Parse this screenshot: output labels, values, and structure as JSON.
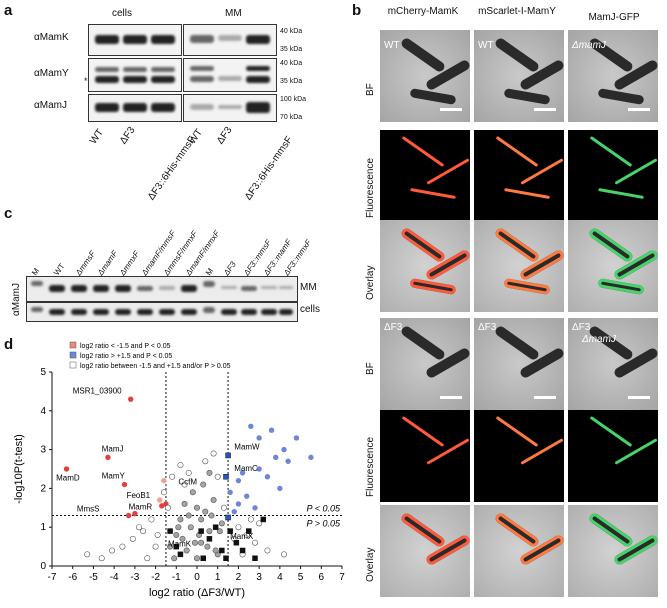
{
  "panels": {
    "a": {
      "letter": "a",
      "group_labels": [
        "cells",
        "MM"
      ],
      "rows": [
        "αMamK",
        "αMamY",
        "αMamJ"
      ],
      "markers_right": [
        "40 kDa",
        "35 kDa",
        "40 kDa",
        "35 kDa",
        "100 kDa",
        "70 kDa"
      ],
      "asterisk": "*",
      "lanes": [
        "WT",
        "ΔF3",
        "ΔF3::6His-mmsF",
        "WT",
        "ΔF3",
        "ΔF3::6His-mmsF"
      ]
    },
    "b": {
      "letter": "b",
      "columns": [
        "mCherry-MamK",
        "mScarlet-I-MamY",
        "MamJ-GFP"
      ],
      "row_labels_top": [
        "BF",
        "Fluorescence",
        "Overlay"
      ],
      "row_labels_bottom": [
        "BF",
        "Fluorescence",
        "Overlay"
      ],
      "strain_top": [
        "WT",
        "WT",
        "ΔmamJ"
      ],
      "strain_bottom": [
        "ΔF3",
        "ΔF3",
        "ΔF3",
        "ΔmamJ"
      ]
    },
    "c": {
      "letter": "c",
      "lanes": [
        "M",
        "WT",
        "ΔmmsF",
        "ΔmamF",
        "ΔmmxF",
        "ΔmamF/mmsF",
        "ΔmmsF/mmxF",
        "ΔmamF/mmxF",
        "M",
        "ΔF3",
        "ΔF3::mmsF",
        "ΔF3::mamF",
        "ΔF3::mmxF"
      ],
      "row_labels": [
        "MM",
        "cells"
      ],
      "antibody": "αMamJ"
    },
    "d": {
      "letter": "d",
      "legend": [
        {
          "text": "log2 ratio < -1.5 and P < 0.05",
          "color": "#f08a7a"
        },
        {
          "text": "log2 ratio > +1.5 and P < 0.05",
          "color": "#6f86d6"
        },
        {
          "text": "log2 ratio between -1.5 and +1.5 and/or P > 0.05",
          "color": "#ffffff"
        }
      ],
      "thresholds": [
        "P < 0.05",
        "P > 0.05"
      ],
      "annotations": [
        "MSR1_03900",
        "MamJ",
        "MamD",
        "MamY",
        "FeoB1",
        "MamR",
        "MmsS",
        "CcfM",
        "MamW",
        "MamC",
        "MamX",
        "MamK"
      ]
    }
  },
  "chart_data": {
    "type": "scatter",
    "title": "",
    "xlabel": "log2 ratio (ΔF3/WT)",
    "ylabel": "-log10P(t-test)",
    "xlim": [
      -7,
      7
    ],
    "ylim": [
      0,
      5
    ],
    "x_ticks": [
      "-7",
      "-6",
      "-5",
      "-4",
      "-3",
      "-2",
      "-1",
      "0",
      "1",
      "2",
      "3",
      "4",
      "5",
      "6",
      "7"
    ],
    "y_ticks": [
      "0",
      "1",
      "2",
      "3",
      "4",
      "5"
    ],
    "threshold_lines": {
      "x": [
        -1.5,
        1.5
      ],
      "y": 1.3
    },
    "series": [
      {
        "name": "down",
        "color": "#e04040",
        "points": [
          [
            -3.2,
            4.3
          ],
          [
            -4.3,
            2.8
          ],
          [
            -6.3,
            2.5
          ],
          [
            -3.5,
            2.1
          ],
          [
            -1.7,
            1.55
          ],
          [
            -3.0,
            1.35
          ],
          [
            -3.3,
            1.3
          ],
          [
            -1.5,
            1.6
          ]
        ]
      },
      {
        "name": "down-faint",
        "color": "#f3a090",
        "points": [
          [
            -1.8,
            1.7
          ],
          [
            -1.6,
            2.2
          ]
        ]
      },
      {
        "name": "up",
        "color": "#6f86d6",
        "points": [
          [
            2.6,
            3.6
          ],
          [
            3.0,
            3.3
          ],
          [
            3.6,
            3.5
          ],
          [
            4.2,
            3.0
          ],
          [
            4.8,
            3.3
          ],
          [
            5.5,
            2.8
          ],
          [
            2.2,
            2.4
          ],
          [
            3.0,
            2.5
          ],
          [
            3.4,
            2.3
          ],
          [
            4.0,
            2.0
          ],
          [
            2.4,
            1.8
          ],
          [
            2.0,
            1.6
          ],
          [
            2.8,
            1.5
          ],
          [
            1.8,
            1.4
          ],
          [
            3.8,
            2.8
          ],
          [
            2.0,
            2.2
          ],
          [
            1.6,
            1.9
          ],
          [
            4.4,
            2.7
          ]
        ]
      },
      {
        "name": "up-strong",
        "color": "#2a55c8",
        "points": [
          [
            1.5,
            2.85
          ],
          [
            1.4,
            2.3
          ],
          [
            1.5,
            1.25
          ]
        ]
      },
      {
        "name": "ns-grey",
        "color": "#9a9a9a",
        "points": [
          [
            -1.3,
            0.5
          ],
          [
            -1.0,
            0.8
          ],
          [
            -0.8,
            1.2
          ],
          [
            -0.5,
            0.4
          ],
          [
            -0.3,
            1.0
          ],
          [
            0.0,
            0.2
          ],
          [
            0.2,
            0.6
          ],
          [
            0.4,
            1.4
          ],
          [
            0.6,
            0.9
          ],
          [
            0.8,
            1.7
          ],
          [
            1.0,
            0.3
          ],
          [
            1.2,
            1.1
          ],
          [
            -0.6,
            1.6
          ],
          [
            -0.2,
            1.9
          ],
          [
            0.3,
            2.1
          ],
          [
            0.7,
            1.3
          ],
          [
            -1.1,
            0.2
          ],
          [
            -0.7,
            0.7
          ],
          [
            0.1,
            0.8
          ],
          [
            0.5,
            0.5
          ],
          [
            0.9,
            0.4
          ],
          [
            -0.4,
            1.3
          ],
          [
            0.0,
            1.5
          ],
          [
            1.1,
            0.9
          ],
          [
            -0.9,
            1.0
          ],
          [
            0.2,
            1.2
          ],
          [
            0.6,
            2.4
          ],
          [
            -0.1,
            0.6
          ]
        ]
      },
      {
        "name": "ns-open",
        "color": "#ffffff",
        "points": [
          [
            -2.2,
            1.2
          ],
          [
            -2.6,
            0.9
          ],
          [
            -3.1,
            0.7
          ],
          [
            -3.6,
            0.5
          ],
          [
            -4.1,
            0.4
          ],
          [
            -4.6,
            0.2
          ],
          [
            -5.3,
            0.3
          ],
          [
            -2.0,
            0.5
          ],
          [
            -2.4,
            0.2
          ],
          [
            -1.9,
            0.8
          ],
          [
            2.0,
            1.0
          ],
          [
            2.4,
            0.8
          ],
          [
            2.8,
            0.6
          ],
          [
            3.4,
            0.4
          ],
          [
            4.2,
            0.3
          ],
          [
            2.2,
            0.3
          ],
          [
            1.8,
            0.7
          ],
          [
            3.0,
            1.1
          ],
          [
            -1.6,
            1.9
          ],
          [
            -1.2,
            2.3
          ],
          [
            -0.8,
            2.6
          ],
          [
            -0.4,
            2.4
          ],
          [
            0.4,
            2.7
          ],
          [
            0.8,
            2.9
          ],
          [
            -0.6,
            2.1
          ],
          [
            1.0,
            2.3
          ],
          [
            -1.4,
            1.5
          ],
          [
            1.3,
            1.5
          ],
          [
            -2.8,
            1.0
          ],
          [
            2.6,
            1.2
          ]
        ]
      },
      {
        "name": "ns-black",
        "color": "#111111",
        "points": [
          [
            -1.3,
            0.9
          ],
          [
            -1.0,
            0.5
          ],
          [
            0.3,
            0.2
          ],
          [
            0.6,
            0.7
          ],
          [
            1.2,
            0.4
          ],
          [
            1.6,
            0.9
          ],
          [
            1.9,
            0.6
          ],
          [
            2.2,
            0.4
          ],
          [
            2.8,
            0.2
          ],
          [
            3.2,
            1.2
          ],
          [
            -0.8,
            0.3
          ],
          [
            0.9,
            1.0
          ],
          [
            1.4,
            0.2
          ],
          [
            2.5,
            0.9
          ],
          [
            0.2,
            0.9
          ]
        ]
      }
    ]
  }
}
